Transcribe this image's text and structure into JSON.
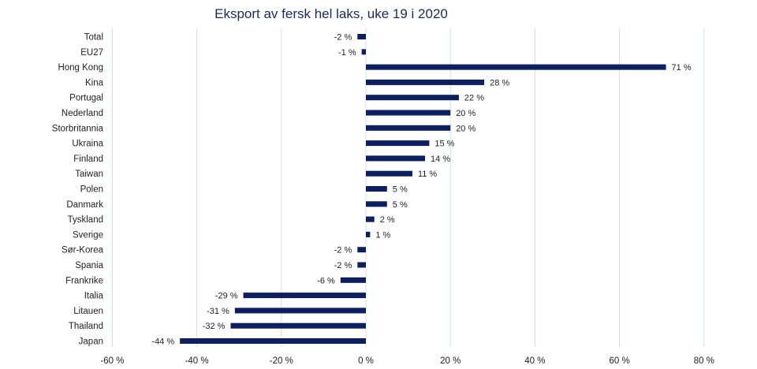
{
  "chart_data": {
    "type": "bar",
    "orientation": "horizontal",
    "title": "Eksport av fersk hel laks, uke 19 i 2020",
    "xlabel": "",
    "ylabel": "",
    "xlim": [
      -60,
      80
    ],
    "grid": true,
    "value_suffix": " %",
    "bar_color": "#0d1f5c",
    "grid_color": "#cfe0ee",
    "categories": [
      "Total",
      "EU27",
      "Hong Kong",
      "Kina",
      "Portugal",
      "Nederland",
      "Storbritannia",
      "Ukraina",
      "Finland",
      "Taiwan",
      "Polen",
      "Danmark",
      "Tyskland",
      "Sverige",
      "Sør-Korea",
      "Spania",
      "Frankrike",
      "Italia",
      "Litauen",
      "Thailand",
      "Japan"
    ],
    "values": [
      -2,
      -1,
      71,
      28,
      22,
      20,
      20,
      15,
      14,
      11,
      5,
      5,
      2,
      1,
      -2,
      -2,
      -6,
      -29,
      -31,
      -32,
      -44
    ],
    "value_labels": [
      "-2 %",
      "-1 %",
      "71 %",
      "28 %",
      "22 %",
      "20 %",
      "20 %",
      "15 %",
      "14 %",
      "11 %",
      "5 %",
      "5 %",
      "2 %",
      "1 %",
      "-2 %",
      "-2 %",
      "-6 %",
      "-29 %",
      "-31 %",
      "-32 %",
      "-44 %"
    ],
    "x_ticks": [
      -60,
      -40,
      -20,
      0,
      20,
      40,
      60,
      80
    ],
    "x_tick_labels": [
      "-60 %",
      "-40 %",
      "-20 %",
      "0 %",
      "20 %",
      "40 %",
      "60 %",
      "80 %"
    ]
  }
}
